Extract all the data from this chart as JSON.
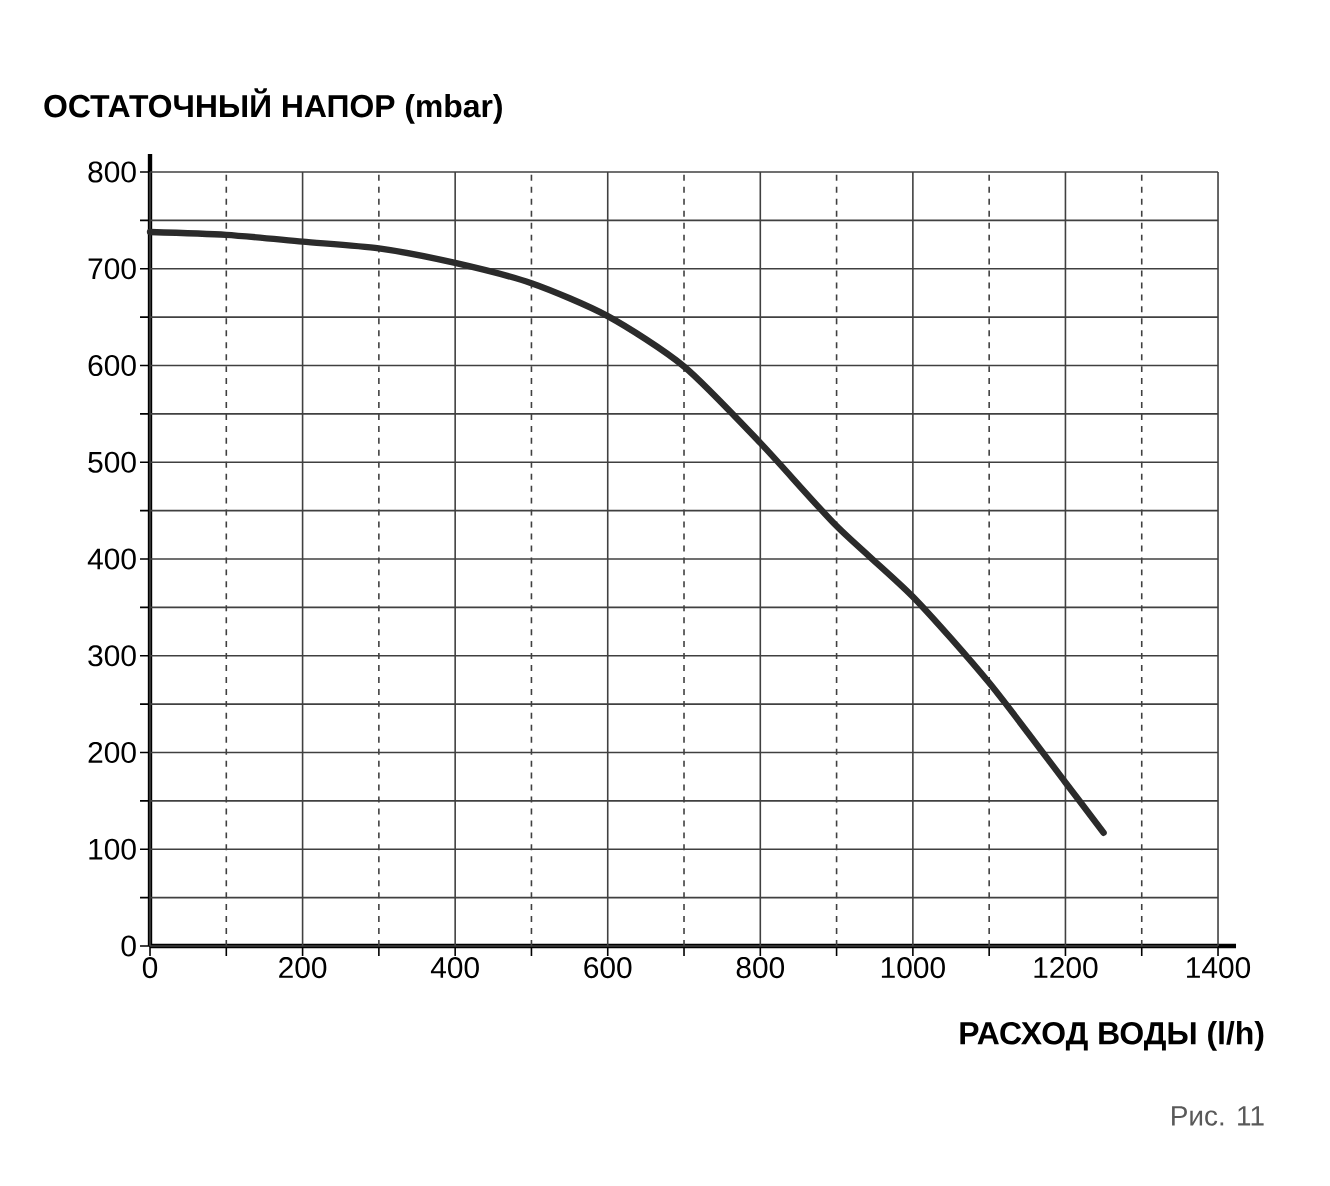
{
  "chart_data": {
    "type": "line",
    "ylabel": "ОСТАТОЧНЫЙ НАПОР (mbar)",
    "xlabel": "РАСХОД ВОДЫ (l/h)",
    "annotations": [
      "Рис. 11"
    ],
    "x": [
      0,
      100,
      200,
      300,
      400,
      500,
      600,
      700,
      800,
      900,
      1000,
      1100,
      1200,
      1250
    ],
    "series": [
      {
        "color": "#2b2b2b",
        "values": [
          738,
          735,
          728,
          721,
          706,
          685,
          651,
          599,
          520,
          434,
          361,
          272,
          169,
          117
        ]
      }
    ],
    "xlim": [
      0,
      1400
    ],
    "ylim": [
      0,
      800
    ],
    "xticks": [
      0,
      {
        "value": 100,
        "label": null
      },
      200,
      {
        "value": 300,
        "label": null
      },
      400,
      {
        "value": 500,
        "label": null
      },
      600,
      {
        "value": 700,
        "label": null
      },
      800,
      {
        "value": 900,
        "label": null
      },
      1000,
      {
        "value": 1100,
        "label": null
      },
      1200,
      {
        "value": 1300,
        "label": null
      },
      1400
    ],
    "yticks": [
      0,
      {
        "value": 50,
        "label": null
      },
      100,
      {
        "value": 150,
        "label": null
      },
      200,
      {
        "value": 250,
        "label": null
      },
      300,
      {
        "value": 350,
        "label": null
      },
      400,
      {
        "value": 450,
        "label": null
      },
      500,
      {
        "value": 550,
        "label": null
      },
      600,
      {
        "value": 650,
        "label": null
      },
      700,
      {
        "value": 750,
        "label": null
      },
      800
    ],
    "grid": true,
    "marker": "none",
    "line_style": "solid"
  }
}
